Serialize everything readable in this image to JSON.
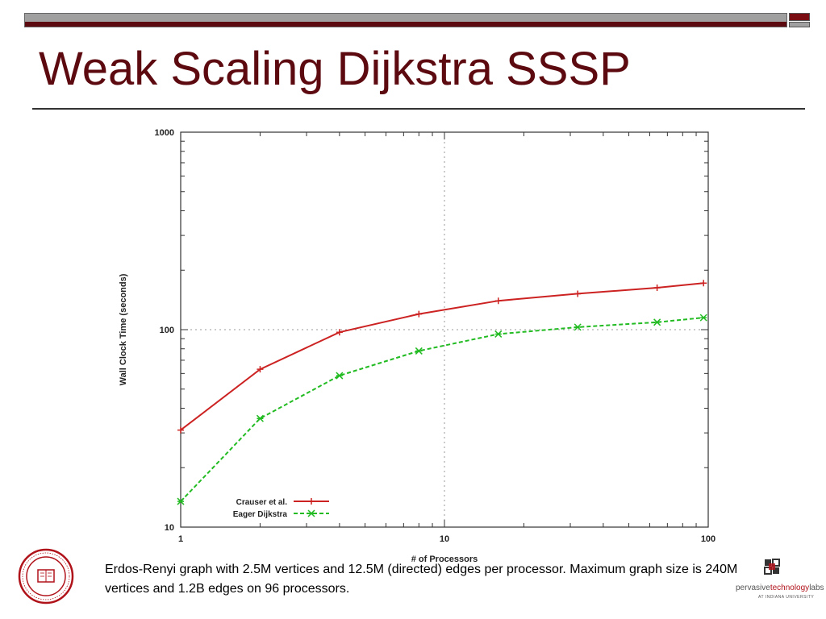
{
  "slide": {
    "title": "Weak Scaling Dijkstra SSSP",
    "caption": "Erdos-Renyi graph with 2.5M vertices and 12.5M (directed) edges per processor.  Maximum graph size is 240M vertices and 1.2B edges on 96 processors."
  },
  "logo": {
    "name_part1": "pervasive",
    "name_part2": "technology",
    "name_part3": "labs",
    "subtitle": "AT INDIANA UNIVERSITY"
  },
  "colors": {
    "title": "#5c0a0f",
    "series_crauser": "#cc2222",
    "series_eager": "#22bb22"
  },
  "chart_data": {
    "type": "line",
    "xlabel": "# of Processors",
    "ylabel": "Wall Clock Time (seconds)",
    "xscale": "log",
    "yscale": "log",
    "xlim": [
      1,
      100
    ],
    "ylim": [
      10,
      1000
    ],
    "x_ticks": [
      "1",
      "10",
      "100"
    ],
    "y_ticks": [
      "10",
      "100",
      "1000"
    ],
    "legend_position": "bottom-left",
    "grid": true,
    "series": [
      {
        "name": "Crauser et al.",
        "color": "#cc2222",
        "style": "solid",
        "marker": "plus",
        "x": [
          1,
          2,
          4,
          8,
          16,
          32,
          64,
          96
        ],
        "y": [
          31,
          63,
          97,
          120,
          140,
          152,
          163,
          172
        ]
      },
      {
        "name": "Eager Dijkstra",
        "color": "#22bb22",
        "style": "dashed",
        "marker": "cross",
        "x": [
          1,
          2,
          4,
          8,
          16,
          32,
          64,
          96
        ],
        "y": [
          13.5,
          35.5,
          58.5,
          78,
          95,
          103,
          109,
          115
        ]
      }
    ]
  }
}
